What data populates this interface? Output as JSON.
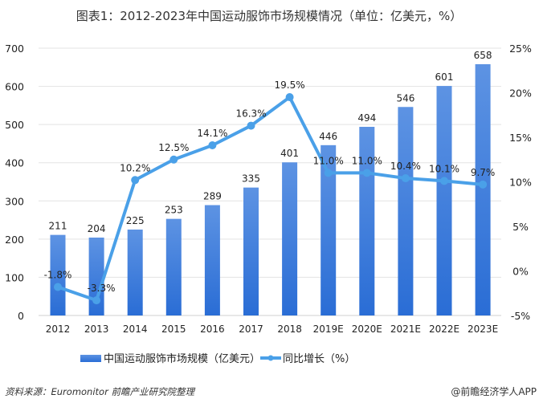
{
  "chart_data": {
    "type": "bar+line",
    "title": "图表1：2012-2023年中国运动服饰市场规模情况（单位：亿美元，%）",
    "categories": [
      "2012",
      "2013",
      "2014",
      "2015",
      "2016",
      "2017",
      "2018",
      "2019E",
      "2020E",
      "2021E",
      "2022E",
      "2023E"
    ],
    "series": [
      {
        "name": "中国运动服饰市场规模（亿美元）",
        "type": "bar",
        "axis": "left",
        "values": [
          211,
          204,
          225,
          253,
          289,
          335,
          401,
          446,
          494,
          546,
          601,
          658
        ],
        "color": "#2f74d8"
      },
      {
        "name": "同比增长（%）",
        "type": "line",
        "axis": "right",
        "values": [
          -1.8,
          -3.3,
          10.2,
          12.5,
          14.1,
          16.3,
          19.5,
          11.0,
          11.0,
          10.4,
          10.1,
          9.7
        ],
        "labels": [
          "-1.8%",
          "-3.3%",
          "10.2%",
          "12.5%",
          "14.1%",
          "16.3%",
          "19.5%",
          "11.0%",
          "11.0%",
          "10.4%",
          "10.1%",
          "9.7%"
        ],
        "color": "#4aa0e8"
      }
    ],
    "ylim_left": [
      0,
      700
    ],
    "yticks_left": [
      "0",
      "100",
      "200",
      "300",
      "400",
      "500",
      "600",
      "700"
    ],
    "ylim_right": [
      -5,
      25
    ],
    "yticks_right": [
      "-5%",
      "0%",
      "5%",
      "10%",
      "15%",
      "20%",
      "25%"
    ],
    "grid": true,
    "legend_placement": "bottom"
  },
  "footer": {
    "source": "资料来源：Euromonitor 前瞻产业研究院整理",
    "credit": "@前瞻经济学人APP"
  }
}
